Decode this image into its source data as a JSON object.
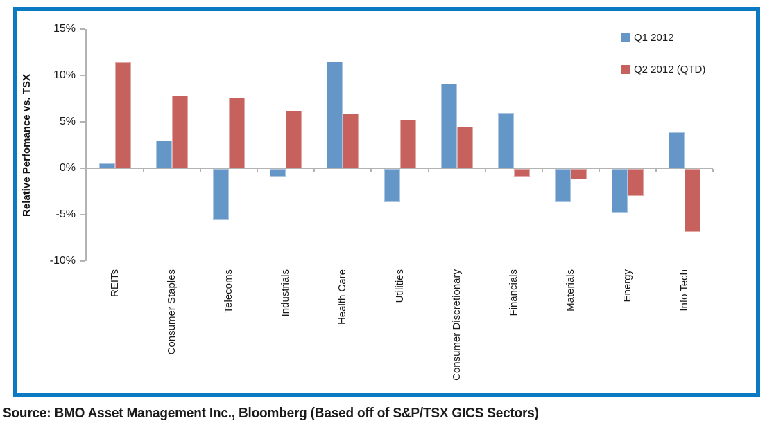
{
  "colors": {
    "frame": "#0b7ac2",
    "axis": "#b3b3b3",
    "text": "#1a1a1a",
    "bar_q1": "#6496c8",
    "bar_q2": "#c6615d"
  },
  "chart_data": {
    "type": "bar",
    "title": "",
    "ylabel": "Relative Perfomance vs. TSX",
    "xlabel": "",
    "categories": [
      "REITs",
      "Consumer Staples",
      "Telecoms",
      "Industrials",
      "Health Care",
      "Utilities",
      "Consumer Discretionary",
      "Financials",
      "Materials",
      "Energy",
      "Info Tech"
    ],
    "series": [
      {
        "name": "Q1 2012",
        "color": "#6496c8",
        "values": [
          0.5,
          3.0,
          -5.5,
          -0.8,
          11.5,
          -3.6,
          9.1,
          6.0,
          -3.6,
          -4.7,
          3.9
        ]
      },
      {
        "name": "Q2 2012 (QTD)",
        "color": "#c6615d",
        "values": [
          11.4,
          7.8,
          7.6,
          6.2,
          5.9,
          5.2,
          4.5,
          -0.8,
          -1.1,
          -2.9,
          -6.8
        ]
      }
    ],
    "ylim": [
      -10,
      15
    ],
    "yticks": [
      {
        "value": 15,
        "label": "15%"
      },
      {
        "value": 10,
        "label": "10%"
      },
      {
        "value": 5,
        "label": "5%"
      },
      {
        "value": 0,
        "label": "0%"
      },
      {
        "value": -5,
        "label": "-5%"
      },
      {
        "value": -10,
        "label": "-10%"
      }
    ],
    "grid": false,
    "legend_position": "top-right"
  },
  "source_note": "Source: BMO Asset Management Inc., Bloomberg (Based off of S&P/TSX GICS Sectors)"
}
